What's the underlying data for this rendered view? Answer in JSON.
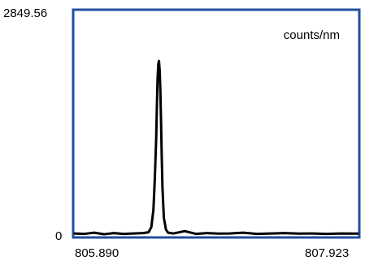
{
  "chart_data": {
    "type": "line",
    "title": "",
    "unit_label": "counts/nm",
    "xlabel": "",
    "ylabel": "",
    "xlim": [
      805.89,
      807.923
    ],
    "ylim": [
      0,
      2849.56
    ],
    "x_tick_labels": [
      "805.890",
      "807.923"
    ],
    "y_tick_labels": [
      "0",
      "2849.56"
    ],
    "grid": false,
    "frame_color": "#1f4fa0",
    "line_color": "#000000",
    "series": [
      {
        "x": [
          805.89,
          805.96,
          806.03,
          806.1,
          806.17,
          806.24,
          806.31,
          806.38,
          806.42,
          806.44,
          806.455,
          806.465,
          806.475,
          806.48,
          806.485,
          806.49,
          806.495,
          806.5,
          806.505,
          806.51,
          806.515,
          806.52,
          806.53,
          806.545,
          806.56,
          806.6,
          806.68,
          806.76,
          806.84,
          806.92,
          807.0,
          807.1,
          807.2,
          807.3,
          807.4,
          807.5,
          807.6,
          807.7,
          807.8,
          807.923
        ],
        "y": [
          30,
          25,
          40,
          20,
          35,
          25,
          30,
          35,
          45,
          110,
          330,
          720,
          1240,
          1640,
          1990,
          2180,
          2220,
          2100,
          1840,
          1440,
          1000,
          620,
          230,
          80,
          40,
          30,
          60,
          25,
          35,
          28,
          30,
          40,
          25,
          30,
          35,
          28,
          30,
          25,
          30,
          28
        ]
      }
    ]
  }
}
